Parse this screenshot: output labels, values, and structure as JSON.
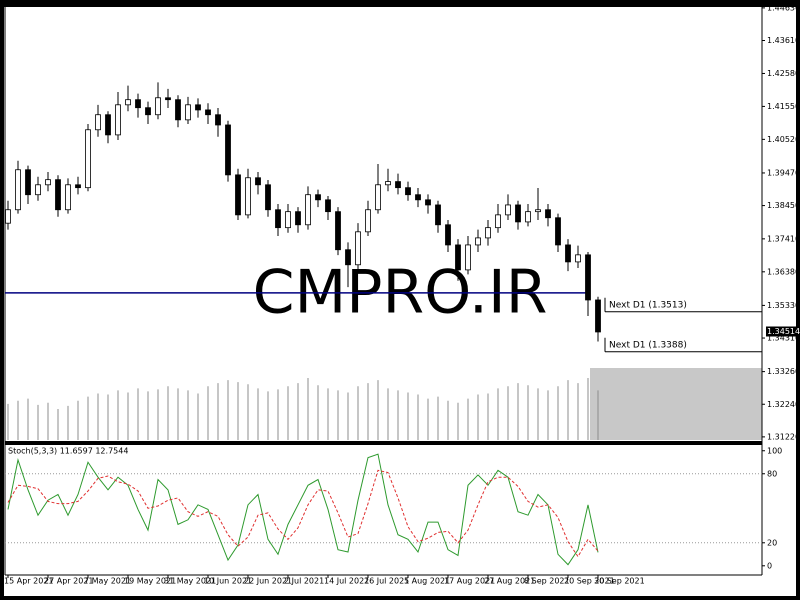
{
  "chart_data": [
    {
      "type": "candlestick",
      "watermark": "CMPRO.IR",
      "open": [
        1.379,
        1.3832,
        1.3957,
        1.3879,
        1.391,
        1.3926,
        1.3832,
        1.391,
        1.3901,
        1.4082,
        1.4129,
        1.4066,
        1.416,
        1.4176,
        1.4151,
        1.4129,
        1.4182,
        1.4176,
        1.4113,
        1.416,
        1.4144,
        1.4129,
        1.4097,
        1.3941,
        1.3816,
        1.3932,
        1.391,
        1.3832,
        1.3776,
        1.3826,
        1.3785,
        1.3879,
        1.3863,
        1.3826,
        1.3707,
        1.366,
        1.3763,
        1.3832,
        1.391,
        1.392,
        1.3901,
        1.3879,
        1.3863,
        1.3847,
        1.3785,
        1.3722,
        1.3644,
        1.3722,
        1.3744,
        1.3776,
        1.3816,
        1.3847,
        1.3794,
        1.3826,
        1.3832,
        1.3807,
        1.3722,
        1.3669,
        1.3691,
        1.355
      ],
      "high": [
        1.386,
        1.3985,
        1.397,
        1.3935,
        1.395,
        1.394,
        1.393,
        1.3935,
        1.41,
        1.416,
        1.414,
        1.42,
        1.422,
        1.4195,
        1.417,
        1.423,
        1.421,
        1.419,
        1.4185,
        1.418,
        1.4165,
        1.415,
        1.411,
        1.396,
        1.396,
        1.395,
        1.3925,
        1.385,
        1.385,
        1.384,
        1.3905,
        1.3895,
        1.3875,
        1.384,
        1.373,
        1.379,
        1.386,
        1.3975,
        1.396,
        1.3945,
        1.392,
        1.39,
        1.388,
        1.386,
        1.38,
        1.374,
        1.375,
        1.377,
        1.38,
        1.385,
        1.388,
        1.386,
        1.385,
        1.39,
        1.385,
        1.382,
        1.374,
        1.372,
        1.37,
        1.356
      ],
      "low": [
        1.377,
        1.382,
        1.385,
        1.386,
        1.389,
        1.381,
        1.382,
        1.388,
        1.389,
        1.406,
        1.404,
        1.405,
        1.414,
        1.412,
        1.41,
        1.4115,
        1.415,
        1.409,
        1.41,
        1.412,
        1.41,
        1.406,
        1.392,
        1.38,
        1.3805,
        1.388,
        1.381,
        1.375,
        1.376,
        1.376,
        1.377,
        1.384,
        1.38,
        1.369,
        1.359,
        1.364,
        1.375,
        1.382,
        1.389,
        1.388,
        1.386,
        1.384,
        1.382,
        1.376,
        1.37,
        1.361,
        1.363,
        1.37,
        1.372,
        1.376,
        1.38,
        1.377,
        1.378,
        1.38,
        1.378,
        1.37,
        1.364,
        1.365,
        1.35,
        1.342
      ],
      "close": [
        1.3832,
        1.3957,
        1.3879,
        1.391,
        1.3926,
        1.3832,
        1.391,
        1.3901,
        1.4082,
        1.4129,
        1.4066,
        1.416,
        1.4176,
        1.4151,
        1.4129,
        1.4182,
        1.4176,
        1.4113,
        1.416,
        1.4144,
        1.4129,
        1.4097,
        1.3941,
        1.3816,
        1.3932,
        1.391,
        1.3832,
        1.3776,
        1.3826,
        1.3785,
        1.3879,
        1.3863,
        1.3826,
        1.3707,
        1.366,
        1.3763,
        1.3832,
        1.391,
        1.392,
        1.3901,
        1.3879,
        1.3863,
        1.3847,
        1.3785,
        1.3722,
        1.3644,
        1.3722,
        1.3744,
        1.3776,
        1.3816,
        1.3847,
        1.3794,
        1.3826,
        1.3832,
        1.3807,
        1.3722,
        1.3669,
        1.3691,
        1.355,
        1.345
      ],
      "volume": [
        35,
        38,
        40,
        34,
        36,
        30,
        33,
        38,
        42,
        45,
        44,
        48,
        46,
        50,
        47,
        49,
        52,
        50,
        48,
        45,
        52,
        55,
        58,
        56,
        54,
        50,
        47,
        49,
        52,
        55,
        60,
        53,
        50,
        48,
        46,
        52,
        55,
        58,
        50,
        48,
        46,
        44,
        40,
        42,
        38,
        36,
        40,
        44,
        45,
        50,
        52,
        55,
        53,
        50,
        48,
        52,
        58,
        55,
        60,
        48
      ],
      "up_color": "#ffffff",
      "down_color": "#000000",
      "volume_color": "#8c8c8c",
      "xlim": [
        -0.3,
        75.4
      ],
      "ylim": [
        1.3106,
        1.4472
      ],
      "yticks": [
        {
          "value": 1.4463,
          "label": "1.44630"
        },
        {
          "value": 1.4361,
          "label": "1.43610"
        },
        {
          "value": 1.4258,
          "label": "1.42580"
        },
        {
          "value": 1.4155,
          "label": "1.41550"
        },
        {
          "value": 1.4052,
          "label": "1.40520"
        },
        {
          "value": 1.3947,
          "label": "1.39470"
        },
        {
          "value": 1.3845,
          "label": "1.38450"
        },
        {
          "value": 1.3741,
          "label": "1.37410"
        },
        {
          "value": 1.3638,
          "label": "1.36380"
        },
        {
          "value": 1.3533,
          "label": "1.35330"
        },
        {
          "value": 1.3431,
          "label": "1.34310"
        },
        {
          "value": 1.3326,
          "label": "1.33260"
        },
        {
          "value": 1.3224,
          "label": "1.32240"
        },
        {
          "value": 1.3122,
          "label": "1.31220"
        }
      ],
      "level": {
        "value": 1.3572,
        "color": "#000080"
      },
      "annotations": [
        {
          "value": 1.3513,
          "label": "Next D1 (1.3513)"
        },
        {
          "value": 1.3388,
          "label": "Next D1 (1.3388)"
        }
      ],
      "last_price": 1.34514
    },
    {
      "type": "line",
      "title": "Stoch(5,3,3) 11.6597 12.7544",
      "series": [
        {
          "color": "#2e9a2e",
          "dash": false,
          "values": [
            49,
            92,
            66,
            44,
            57,
            62,
            44,
            62,
            90,
            77,
            66,
            77,
            70,
            49,
            31,
            75,
            66,
            36,
            40,
            53,
            49,
            27,
            5,
            18,
            53,
            62,
            23,
            10,
            36,
            53,
            70,
            75,
            49,
            14,
            12,
            57,
            94,
            97,
            53,
            27,
            23,
            12,
            38,
            38,
            14,
            9,
            70,
            79,
            70,
            83,
            77,
            47,
            44,
            62,
            53,
            10,
            1,
            14,
            53,
            11.6597
          ]
        },
        {
          "color": "#e03030",
          "dash": true,
          "values": [
            55,
            70,
            69,
            67,
            56,
            54,
            54,
            56,
            65,
            76,
            78,
            73,
            71,
            65,
            50,
            52,
            57,
            59,
            47,
            43,
            47,
            43,
            27,
            17,
            25,
            44,
            46,
            32,
            23,
            33,
            53,
            66,
            65,
            46,
            25,
            28,
            54,
            83,
            81,
            59,
            34,
            21,
            24,
            29,
            30,
            20,
            31,
            53,
            73,
            77,
            77,
            69,
            56,
            51,
            53,
            42,
            21,
            8,
            23,
            12.7544
          ]
        }
      ],
      "levels": [
        20,
        80
      ],
      "xlim": [
        -0.3,
        75.4
      ],
      "ylim": [
        -8,
        105
      ],
      "yticks": [
        0,
        20,
        80,
        100
      ],
      "xticks": [
        {
          "value": 0,
          "label": "15 Apr 2021"
        },
        {
          "value": 4,
          "label": "27 Apr 2021"
        },
        {
          "value": 8,
          "label": "7 May 2021"
        },
        {
          "value": 12,
          "label": "19 May 2021"
        },
        {
          "value": 16,
          "label": "31 May 2021"
        },
        {
          "value": 20,
          "label": "10 Jun 2021"
        },
        {
          "value": 24,
          "label": "22 Jun 2021"
        },
        {
          "value": 28,
          "label": "2 Jul 2021"
        },
        {
          "value": 32,
          "label": "14 Jul 2021"
        },
        {
          "value": 36,
          "label": "26 Jul 2021"
        },
        {
          "value": 40,
          "label": "5 Aug 2021"
        },
        {
          "value": 44,
          "label": "17 Aug 2021"
        },
        {
          "value": 48,
          "label": "27 Aug 2021"
        },
        {
          "value": 52,
          "label": "8 Sep 2021"
        },
        {
          "value": 56,
          "label": "20 Sep 2021"
        },
        {
          "value": 59,
          "label": "30 Sep 2021"
        }
      ]
    }
  ]
}
